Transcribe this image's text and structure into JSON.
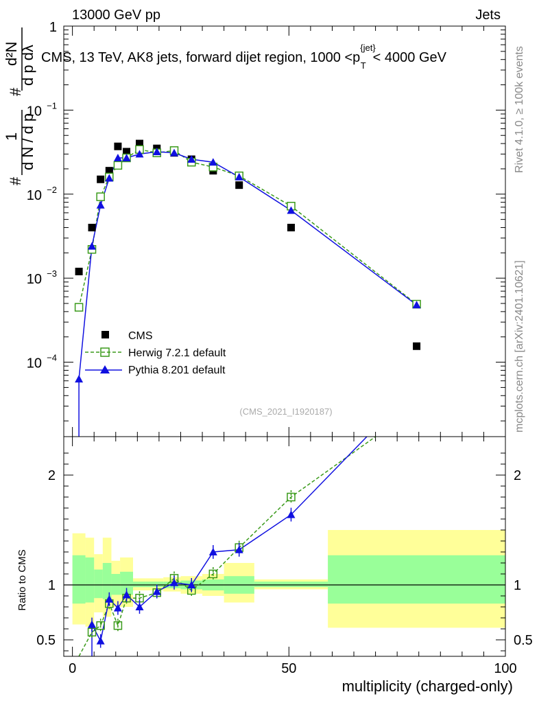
{
  "header": {
    "left": "13000 GeV pp",
    "right": "Jets"
  },
  "side_labels": {
    "rivet": "Rivet 4.1.0, ≥ 100k events",
    "mcplots": "mcplots.cern.ch [arXiv:2401.10621]"
  },
  "colors": {
    "cms": "#000000",
    "herwig": "#3a9a1a",
    "pythia": "#1010e0",
    "band_outer": "#ffff99",
    "band_inner": "#99ff99"
  },
  "chart_data": [
    {
      "type": "scatter",
      "panel": "main",
      "title": "CMS, 13 TeV, AK8 jets, forward dijet region, 1000 <p_T^{jet}< 4000 GeV",
      "title_parts": {
        "prefix": "CMS, 13 TeV, AK8 jets, forward dijet region, 1000 <p",
        "sup": "{jet}",
        "sub": "T",
        "suffix": "< 4000 GeV"
      },
      "ylabel": "1/(dN/dp_T) d²N/(dp_T dλ)",
      "ylabel_parts": {
        "one": "1",
        "hash": "#",
        "den": "d N / d p",
        "num_top": "d²N",
        "num_bot": "d p  dλ",
        "sub": "T"
      },
      "yscale": "log",
      "ylim": [
        1.3e-05,
        1
      ],
      "xlim": [
        -2,
        100
      ],
      "yticks": [
        {
          "v": 1,
          "label": "1"
        },
        {
          "v": 0.1,
          "label": "10",
          "exp": "−1"
        },
        {
          "v": 0.01,
          "label": "10",
          "exp": "−2"
        },
        {
          "v": 0.001,
          "label": "10",
          "exp": "−3"
        },
        {
          "v": 0.0001,
          "label": "10",
          "exp": "−4"
        }
      ],
      "watermark": "(CMS_2021_I1920187)",
      "legend": [
        {
          "key": "cms",
          "label": "CMS"
        },
        {
          "key": "herwig",
          "label": "Herwig 7.2.1 default"
        },
        {
          "key": "pythia",
          "label": "Pythia 8.201 default"
        }
      ],
      "series": [
        {
          "name": "CMS",
          "key": "cms",
          "x": [
            1.5,
            4.5,
            6.5,
            8.5,
            10.5,
            12.5,
            15.5,
            19.5,
            23.5,
            27.5,
            32.5,
            38.5,
            50.5,
            79.5
          ],
          "y": [
            0.0012,
            0.004,
            0.015,
            0.019,
            0.037,
            0.032,
            0.04,
            0.035,
            0.031,
            0.026,
            0.019,
            0.0128,
            0.004,
            0.000155
          ]
        },
        {
          "name": "Herwig 7.2.1 default",
          "key": "herwig",
          "x": [
            1.5,
            4.5,
            6.5,
            8.5,
            10.5,
            12.5,
            15.5,
            19.5,
            23.5,
            27.5,
            32.5,
            38.5,
            50.5,
            79.5
          ],
          "y": [
            0.00045,
            0.0022,
            0.0093,
            0.016,
            0.022,
            0.027,
            0.034,
            0.031,
            0.033,
            0.024,
            0.021,
            0.0165,
            0.0072,
            0.00049
          ]
        },
        {
          "name": "Pythia 8.201 default",
          "key": "pythia",
          "x": [
            1.5,
            4.5,
            6.5,
            8.5,
            10.5,
            12.5,
            15.5,
            19.5,
            23.5,
            27.5,
            32.5,
            38.5,
            50.5,
            79.5
          ],
          "y": [
            6.3e-05,
            0.0024,
            0.0074,
            0.0155,
            0.027,
            0.027,
            0.03,
            0.032,
            0.031,
            0.026,
            0.024,
            0.016,
            0.0064,
            0.00048
          ]
        }
      ]
    },
    {
      "type": "scatter",
      "panel": "ratio",
      "xlabel": "multiplicity (charged-only)",
      "ylabel": "Ratio to CMS",
      "xlim": [
        -2,
        100
      ],
      "ylim": [
        0.35,
        2.35
      ],
      "xticks": [
        0,
        50,
        100
      ],
      "yticks": [
        0.5,
        1,
        2
      ],
      "reference": 1,
      "bands": [
        {
          "x0": 0,
          "x1": 3,
          "outer": [
            0.64,
            1.47
          ],
          "inner": [
            0.83,
            1.27
          ]
        },
        {
          "x0": 3,
          "x1": 5,
          "outer": [
            0.62,
            1.43
          ],
          "inner": [
            0.84,
            1.25
          ]
        },
        {
          "x0": 5,
          "x1": 7,
          "outer": [
            0.75,
            1.28
          ],
          "inner": [
            0.88,
            1.14
          ]
        },
        {
          "x0": 7,
          "x1": 9,
          "outer": [
            0.71,
            1.43
          ],
          "inner": [
            0.87,
            1.2
          ]
        },
        {
          "x0": 9,
          "x1": 11,
          "outer": [
            0.8,
            1.22
          ],
          "inner": [
            0.91,
            1.1
          ]
        },
        {
          "x0": 11,
          "x1": 14,
          "outer": [
            0.8,
            1.25
          ],
          "inner": [
            0.91,
            1.12
          ]
        },
        {
          "x0": 14,
          "x1": 17,
          "outer": [
            0.95,
            1.06
          ],
          "inner": [
            0.98,
            1.03
          ]
        },
        {
          "x0": 17,
          "x1": 21,
          "outer": [
            0.95,
            1.06
          ],
          "inner": [
            0.98,
            1.03
          ]
        },
        {
          "x0": 21,
          "x1": 25,
          "outer": [
            0.94,
            1.07
          ],
          "inner": [
            0.97,
            1.03
          ]
        },
        {
          "x0": 25,
          "x1": 30,
          "outer": [
            0.92,
            1.08
          ],
          "inner": [
            0.96,
            1.04
          ]
        },
        {
          "x0": 30,
          "x1": 35,
          "outer": [
            0.9,
            1.1
          ],
          "inner": [
            0.95,
            1.05
          ]
        },
        {
          "x0": 35,
          "x1": 42,
          "outer": [
            0.84,
            1.2
          ],
          "inner": [
            0.92,
            1.08
          ]
        },
        {
          "x0": 42,
          "x1": 59,
          "outer": [
            0.96,
            1.05
          ],
          "inner": [
            0.98,
            1.03
          ]
        },
        {
          "x0": 59,
          "x1": 100,
          "outer": [
            0.61,
            1.5
          ],
          "inner": [
            0.83,
            1.27
          ]
        }
      ],
      "series": [
        {
          "name": "Herwig 7.2.1 default",
          "key": "herwig",
          "x": [
            4.5,
            6.5,
            8.5,
            10.5,
            12.5,
            15.5,
            19.5,
            23.5,
            27.5,
            32.5,
            38.5,
            50.5
          ],
          "y": [
            0.57,
            0.63,
            0.83,
            0.63,
            0.88,
            0.88,
            0.93,
            1.06,
            0.95,
            1.1,
            1.34,
            1.8
          ]
        },
        {
          "name": "Pythia 8.201 default",
          "key": "pythia",
          "x": [
            4.5,
            6.5,
            8.5,
            10.5,
            12.5,
            15.5,
            19.5,
            23.5,
            27.5,
            32.5,
            38.5,
            50.5
          ],
          "y": [
            0.64,
            0.49,
            0.87,
            0.79,
            0.91,
            0.8,
            0.94,
            1.02,
            1.0,
            1.3,
            1.32,
            1.64
          ]
        }
      ],
      "offscale_lines": [
        {
          "key": "herwig",
          "to_x": 70,
          "to_y": 2.35
        },
        {
          "key": "pythia",
          "to_x": 68,
          "to_y": 2.35
        }
      ]
    }
  ]
}
